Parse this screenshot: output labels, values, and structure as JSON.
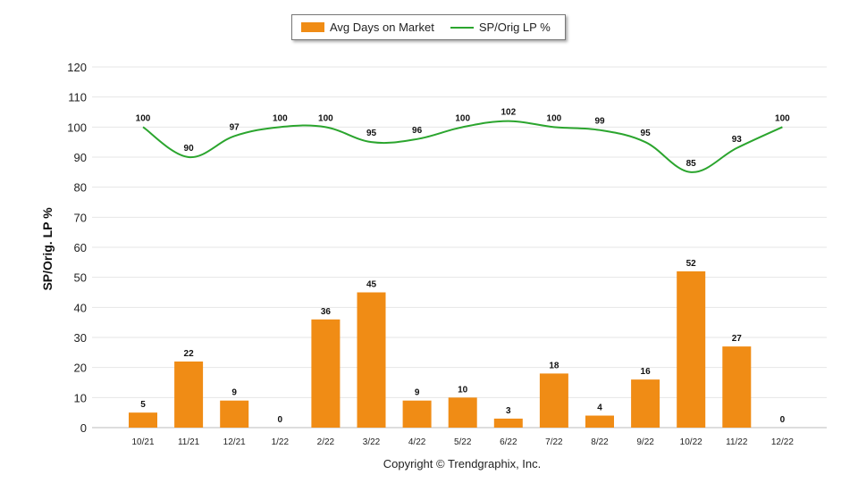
{
  "chart_data": {
    "type": "bar",
    "categories": [
      "10/21",
      "11/21",
      "12/21",
      "1/22",
      "2/22",
      "3/22",
      "4/22",
      "5/22",
      "6/22",
      "7/22",
      "8/22",
      "9/22",
      "10/22",
      "11/22",
      "12/22"
    ],
    "series": [
      {
        "name": "Avg Days on Market",
        "kind": "bar",
        "color": "#F08C15",
        "values": [
          5,
          22,
          9,
          0,
          36,
          45,
          9,
          10,
          3,
          18,
          4,
          16,
          52,
          27,
          0
        ]
      },
      {
        "name": "SP/Orig LP %",
        "kind": "line",
        "color": "#2BA52E",
        "values": [
          100,
          90,
          97,
          100,
          100,
          95,
          96,
          100,
          102,
          100,
          99,
          95,
          85,
          93,
          100
        ]
      }
    ],
    "ylabel": "SP/Orig. LP %",
    "ylim": [
      0,
      120
    ],
    "yticks": [
      0,
      10,
      20,
      30,
      40,
      50,
      60,
      70,
      80,
      90,
      100,
      110,
      120
    ],
    "grid": true,
    "legend": "top-center"
  },
  "legend": {
    "bar_label": "Avg Days on Market",
    "line_label": "SP/Orig LP %"
  },
  "footer": {
    "copyright": "Copyright © Trendgraphix, Inc."
  }
}
